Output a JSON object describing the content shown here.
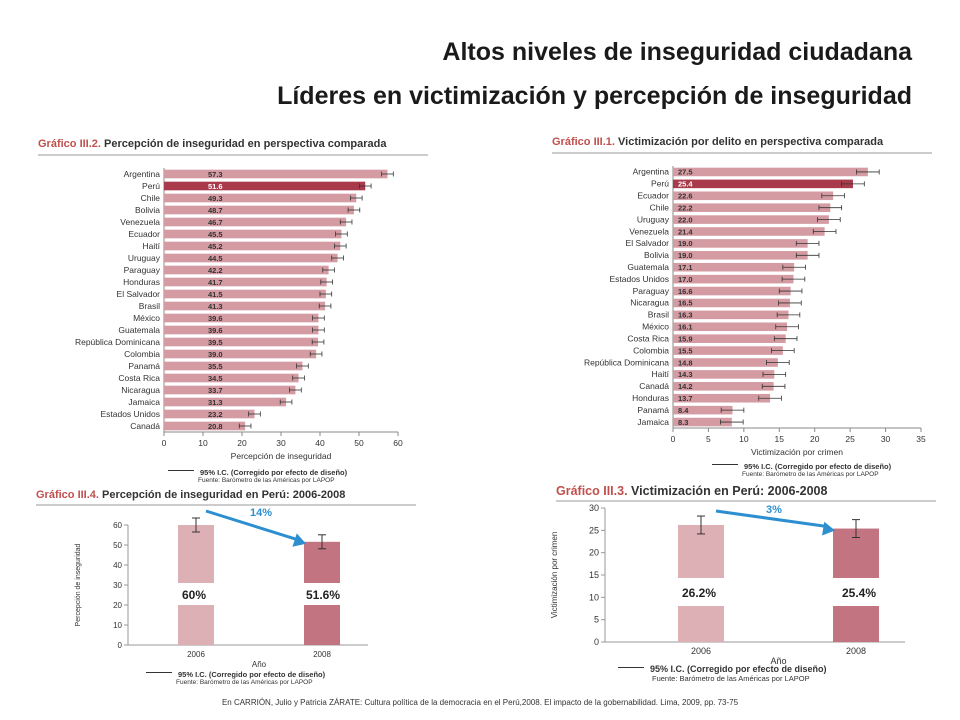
{
  "page": {
    "title1": "Altos niveles de inseguridad ciudadana",
    "title2": "Líderes en victimización y percepción de inseguridad",
    "citation": "En CARRIÓN, Julio y Patricia ZÁRATE: Cultura política de la democracia en el Perú,2008. El impacto de la gobernabilidad. Lima, 2009, pp. 73-75",
    "accent_color": "#c0504d",
    "bar_color": "#d49ba3",
    "highlight_color": "#a83a4c",
    "arrow_color": "#2e8fd0"
  },
  "chart_data": [
    {
      "type": "bar",
      "orientation": "horizontal",
      "graphic_num": "Gráfico III.2.",
      "title": "Percepción de inseguridad en perspectiva comparada",
      "categories": [
        "Argentina",
        "Perú",
        "Chile",
        "Bolivia",
        "Venezuela",
        "Ecuador",
        "Haití",
        "Uruguay",
        "Paraguay",
        "Honduras",
        "El Salvador",
        "Brasil",
        "México",
        "Guatemala",
        "República Dominicana",
        "Colombia",
        "Panamá",
        "Costa Rica",
        "Nicaragua",
        "Jamaica",
        "Estados Unidos",
        "Canadá"
      ],
      "values": [
        57.3,
        51.6,
        49.3,
        48.7,
        46.7,
        45.5,
        45.2,
        44.5,
        42.2,
        41.7,
        41.5,
        41.3,
        39.6,
        39.6,
        39.5,
        39.0,
        35.5,
        34.5,
        33.7,
        31.3,
        23.2,
        20.8
      ],
      "value_labels": [
        "57.3",
        "51.6",
        "49.3",
        "48.7",
        "46.7",
        "45.5",
        "45.2",
        "44.5",
        "42.2",
        "41.7",
        "41.5",
        "41.3",
        "39.6",
        "39.6",
        "39.5",
        "39.0",
        "35.5",
        "34.5",
        "33.7",
        "31.3",
        "23.2",
        "20.8"
      ],
      "highlight": "Perú",
      "xlabel": "Percepción de inseguridad",
      "xlim": [
        0,
        60
      ],
      "xticks": [
        "0",
        "10",
        "20",
        "30",
        "40",
        "50",
        "60"
      ],
      "legend": "95% I.C. (Corregido por efecto de diseño)",
      "source": "Fuente: Barómetro de las Américas por LAPOP"
    },
    {
      "type": "bar",
      "orientation": "horizontal",
      "graphic_num": "Gráfico III.1.",
      "title": "Victimización por delito en perspectiva comparada",
      "categories": [
        "Argentina",
        "Perú",
        "Ecuador",
        "Chile",
        "Uruguay",
        "Venezuela",
        "El Salvador",
        "Bolivia",
        "Guatemala",
        "Estados Unidos",
        "Paraguay",
        "Nicaragua",
        "Brasil",
        "México",
        "Costa Rica",
        "Colombia",
        "República Dominicana",
        "Haití",
        "Canadá",
        "Honduras",
        "Panamá",
        "Jamaica"
      ],
      "values": [
        27.5,
        25.4,
        22.6,
        22.2,
        22.0,
        21.4,
        19.0,
        19.0,
        17.1,
        17.0,
        16.6,
        16.5,
        16.3,
        16.1,
        15.9,
        15.5,
        14.8,
        14.3,
        14.2,
        13.7,
        8.4,
        8.3
      ],
      "value_labels": [
        "27.5",
        "25.4",
        "22.6",
        "22.2",
        "22.0",
        "21.4",
        "19.0",
        "19.0",
        "17.1",
        "17.0",
        "16.6",
        "16.5",
        "16.3",
        "16.1",
        "15.9",
        "15.5",
        "14.8",
        "14.3",
        "14.2",
        "13.7",
        "8.4",
        "8.3"
      ],
      "highlight": "Perú",
      "xlabel": "Victimización por crimen",
      "xlim": [
        0,
        35
      ],
      "xticks": [
        "0",
        "5",
        "10",
        "15",
        "20",
        "25",
        "30",
        "35"
      ],
      "legend": "95% I.C. (Corregido por efecto de diseño)",
      "source": "Fuente: Barómetro de las Américas por LAPOP"
    },
    {
      "type": "bar",
      "graphic_num": "Gráfico III.4.",
      "title": "Percepción de inseguridad en Perú: 2006-2008",
      "categories": [
        "2006",
        "2008"
      ],
      "values": [
        60,
        51.6
      ],
      "value_labels": [
        "60%",
        "51.6%"
      ],
      "ylabel": "Percepción de inseguridad",
      "xlabel": "Año",
      "ylim": [
        0,
        60
      ],
      "yticks": [
        "0",
        "10",
        "20",
        "30",
        "40",
        "50",
        "60"
      ],
      "change_label": "14%",
      "legend": "95% I.C. (Corregido por efecto de diseño)",
      "source": "Fuente: Barómetro de las Américas por LAPOP"
    },
    {
      "type": "bar",
      "graphic_num": "Gráfico III.3.",
      "title": "Victimización en Perú: 2006-2008",
      "categories": [
        "2006",
        "2008"
      ],
      "values": [
        26.2,
        25.4
      ],
      "value_labels": [
        "26.2%",
        "25.4%"
      ],
      "ylabel": "Victimización por crimen",
      "xlabel": "Año",
      "ylim": [
        0,
        30
      ],
      "yticks": [
        "0",
        "5",
        "10",
        "15",
        "20",
        "25",
        "30"
      ],
      "change_label": "3%",
      "legend": "95% I.C. (Corregido por efecto de diseño)",
      "source": "Fuente: Barómetro de las Américas por LAPOP"
    }
  ]
}
